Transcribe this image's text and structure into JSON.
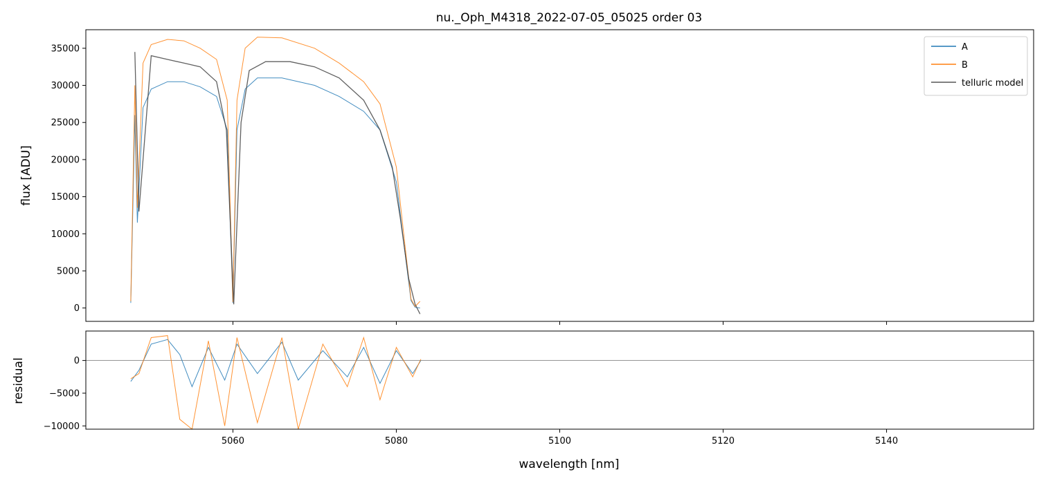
{
  "chart_data": [
    {
      "type": "line",
      "title": "nu._Oph_M4318_2022-07-05_05025  order 03",
      "xlabel": "",
      "ylabel": "flux [ADU]",
      "xlim": [
        5042,
        5158
      ],
      "ylim": [
        -1800,
        37500
      ],
      "yticks": [
        0,
        5000,
        10000,
        15000,
        20000,
        25000,
        30000,
        35000
      ],
      "ytick_labels": [
        "0",
        "5000",
        "10000",
        "15000",
        "20000",
        "25000",
        "30000",
        "35000"
      ],
      "legend_position": "top-right",
      "legend": [
        "A",
        "B",
        "telluric model"
      ],
      "series": [
        {
          "name": "A",
          "color": "#1f77b4",
          "x": [
            5047.5,
            5048.0,
            5048.3,
            5049.0,
            5050.0,
            5052.0,
            5054.0,
            5056.0,
            5058.0,
            5059.3,
            5060.0,
            5060.5,
            5061.5,
            5063.0,
            5066.0,
            5070.0,
            5073.0,
            5076.0,
            5078.0,
            5080.0,
            5081.0,
            5081.8,
            5082.3,
            5082.9
          ],
          "y": [
            700,
            26000,
            11500,
            27000,
            29500,
            30500,
            30500,
            29800,
            28500,
            24000,
            700,
            24000,
            29500,
            31000,
            31000,
            30000,
            28500,
            26500,
            24000,
            17000,
            8000,
            1000,
            100,
            0
          ]
        },
        {
          "name": "B",
          "color": "#ff7f0e",
          "x": [
            5047.5,
            5048.0,
            5048.3,
            5049.0,
            5050.0,
            5052.0,
            5054.0,
            5056.0,
            5058.0,
            5059.3,
            5060.0,
            5060.5,
            5061.5,
            5063.0,
            5066.0,
            5070.0,
            5073.0,
            5076.0,
            5078.0,
            5080.0,
            5081.0,
            5081.8,
            5082.3,
            5082.9
          ],
          "y": [
            900,
            30000,
            13500,
            33000,
            35500,
            36200,
            36000,
            35000,
            33500,
            28000,
            800,
            28000,
            35000,
            36500,
            36400,
            35000,
            33000,
            30500,
            27500,
            19000,
            9000,
            1200,
            200,
            900
          ]
        },
        {
          "name": "telluric model",
          "color": "#444444",
          "x": [
            5048.0,
            5048.5,
            5050.0,
            5052.0,
            5054.0,
            5056.0,
            5058.0,
            5059.2,
            5060.1,
            5061.0,
            5062.0,
            5064.0,
            5067.0,
            5070.0,
            5073.0,
            5076.0,
            5078.0,
            5079.5,
            5080.5,
            5081.5,
            5082.3,
            5082.9
          ],
          "y": [
            34500,
            13000,
            34000,
            33500,
            33000,
            32500,
            30500,
            24000,
            500,
            25000,
            32000,
            33200,
            33200,
            32500,
            31000,
            28000,
            24000,
            19000,
            12000,
            4000,
            500,
            -800
          ]
        }
      ]
    },
    {
      "type": "line",
      "title": "",
      "xlabel": "wavelength [nm]",
      "ylabel": "residual",
      "xlim": [
        5042,
        5158
      ],
      "ylim": [
        -10500,
        4500
      ],
      "yticks": [
        -10000,
        -5000,
        0
      ],
      "ytick_labels": [
        "−10000",
        "−5000",
        "0"
      ],
      "xticks": [
        5060,
        5080,
        5100,
        5120,
        5140
      ],
      "xtick_labels": [
        "5060",
        "5080",
        "5100",
        "5120",
        "5140"
      ],
      "series": [
        {
          "name": "",
          "color": "#1f77b4",
          "x": [
            5047.5,
            5048.5,
            5050.0,
            5052.0,
            5053.5,
            5055.0,
            5057.0,
            5059.0,
            5060.5,
            5063.0,
            5066.0,
            5068.0,
            5071.0,
            5074.0,
            5076.0,
            5078.0,
            5080.0,
            5082.0,
            5083.0
          ],
          "y": [
            -3200,
            -1500,
            2500,
            3200,
            900,
            -4000,
            2000,
            -3000,
            2500,
            -2000,
            2800,
            -3000,
            1500,
            -2500,
            2000,
            -3500,
            1500,
            -2000,
            0
          ]
        },
        {
          "name": "",
          "color": "#ff7f0e",
          "x": [
            5047.5,
            5048.5,
            5050.0,
            5052.0,
            5053.5,
            5055.0,
            5057.0,
            5059.0,
            5060.5,
            5063.0,
            5066.0,
            5068.0,
            5071.0,
            5074.0,
            5076.0,
            5078.0,
            5080.0,
            5082.0,
            5083.0
          ],
          "y": [
            -2800,
            -2000,
            3500,
            3800,
            -9000,
            -10500,
            3000,
            -10000,
            3500,
            -9500,
            3500,
            -10500,
            2500,
            -4000,
            3500,
            -6000,
            2000,
            -2500,
            200
          ]
        }
      ]
    }
  ]
}
